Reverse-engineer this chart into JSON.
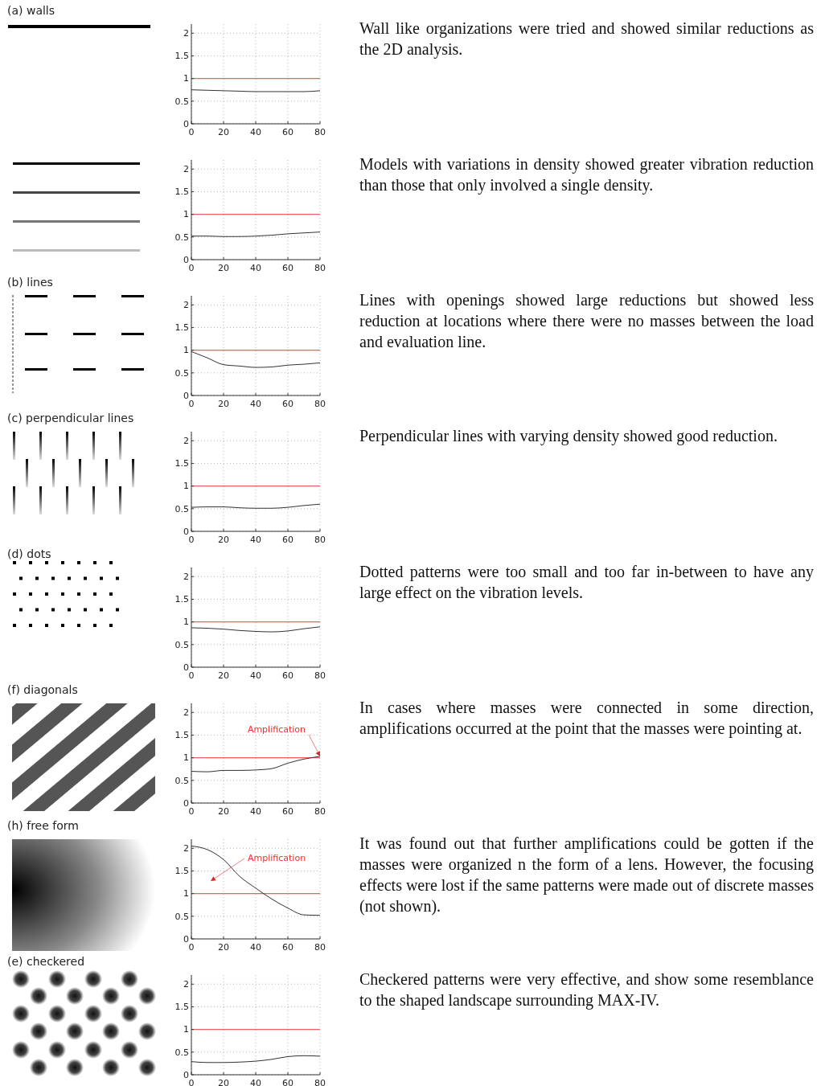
{
  "chart_data": [
    {
      "type": "line",
      "annotations": [
        "(a) walls",
        "Wall like organizations were tried and showed similar reductions as the 2D analysis."
      ],
      "x": [
        0,
        10,
        20,
        30,
        40,
        50,
        60,
        70,
        80
      ],
      "series": [
        {
          "color": "#333333",
          "values": [
            0.75,
            0.74,
            0.73,
            0.72,
            0.71,
            0.71,
            0.71,
            0.71,
            0.73
          ]
        }
      ],
      "xlim": [
        0,
        80
      ],
      "ylim": [
        0,
        2.2
      ],
      "xticks": [
        0,
        20,
        40,
        60,
        80
      ],
      "yticks": [
        0,
        0.5,
        1,
        1.5,
        2
      ],
      "grid": true,
      "ref_lines": [
        {
          "axis": "y",
          "value": 1,
          "color": "#f06060"
        }
      ]
    },
    {
      "type": "line",
      "x": [
        0,
        10,
        20,
        30,
        40,
        50,
        60,
        70,
        80
      ],
      "series": [
        {
          "color": "#333333",
          "values": [
            0.52,
            0.52,
            0.51,
            0.51,
            0.52,
            0.54,
            0.57,
            0.59,
            0.61
          ]
        }
      ],
      "xlim": [
        0,
        80
      ],
      "ylim": [
        0,
        2.2
      ],
      "xticks": [
        0,
        20,
        40,
        60,
        80
      ],
      "yticks": [
        0,
        0.5,
        1,
        1.5,
        2
      ],
      "grid": true,
      "ref_lines": [
        {
          "axis": "y",
          "value": 1,
          "color": "#f06060"
        }
      ],
      "annotations": [
        "Models with variations in density showed greater vibration reduction than those that only involved a single density."
      ]
    },
    {
      "type": "line",
      "x": [
        0,
        10,
        20,
        30,
        40,
        50,
        60,
        70,
        80
      ],
      "series": [
        {
          "color": "#333333",
          "values": [
            0.97,
            0.83,
            0.68,
            0.65,
            0.62,
            0.63,
            0.67,
            0.69,
            0.72
          ]
        }
      ],
      "xlim": [
        0,
        80
      ],
      "ylim": [
        0,
        2.2
      ],
      "xticks": [
        0,
        20,
        40,
        60,
        80
      ],
      "yticks": [
        0,
        0.5,
        1,
        1.5,
        2
      ],
      "grid": true,
      "ref_lines": [
        {
          "axis": "y",
          "value": 1,
          "color": "#f06060"
        }
      ],
      "annotations": [
        "(b) lines",
        "Lines with openings showed large reductions but showed less reduction at locations where there were no masses between the load and evaluation line."
      ]
    },
    {
      "type": "line",
      "x": [
        0,
        10,
        20,
        30,
        40,
        50,
        60,
        70,
        80
      ],
      "series": [
        {
          "color": "#333333",
          "values": [
            0.53,
            0.54,
            0.54,
            0.52,
            0.51,
            0.51,
            0.53,
            0.57,
            0.6
          ]
        }
      ],
      "xlim": [
        0,
        80
      ],
      "ylim": [
        0,
        2.2
      ],
      "xticks": [
        0,
        20,
        40,
        60,
        80
      ],
      "yticks": [
        0,
        0.5,
        1,
        1.5,
        2
      ],
      "grid": true,
      "ref_lines": [
        {
          "axis": "y",
          "value": 1,
          "color": "#f06060"
        }
      ],
      "annotations": [
        "(c) perpendicular lines",
        "Perpendicular lines with varying density showed good reduction."
      ]
    },
    {
      "type": "line",
      "x": [
        0,
        10,
        20,
        30,
        40,
        50,
        60,
        70,
        80
      ],
      "series": [
        {
          "color": "#333333",
          "values": [
            0.87,
            0.86,
            0.84,
            0.81,
            0.79,
            0.78,
            0.8,
            0.85,
            0.89
          ]
        }
      ],
      "xlim": [
        0,
        80
      ],
      "ylim": [
        0,
        2.2
      ],
      "xticks": [
        0,
        20,
        40,
        60,
        80
      ],
      "yticks": [
        0,
        0.5,
        1,
        1.5,
        2
      ],
      "grid": true,
      "ref_lines": [
        {
          "axis": "y",
          "value": 1,
          "color": "#f06060"
        }
      ],
      "annotations": [
        "(d) dots",
        "Dotted patterns were too small and too far in-between to have any large effect on the vibration levels."
      ]
    },
    {
      "type": "line",
      "x": [
        0,
        10,
        20,
        30,
        40,
        50,
        60,
        70,
        80
      ],
      "series": [
        {
          "color": "#333333",
          "values": [
            0.7,
            0.69,
            0.72,
            0.72,
            0.73,
            0.76,
            0.88,
            0.97,
            1.03
          ]
        }
      ],
      "xlim": [
        0,
        80
      ],
      "ylim": [
        0,
        2.2
      ],
      "xticks": [
        0,
        20,
        40,
        60,
        80
      ],
      "yticks": [
        0,
        0.5,
        1,
        1.5,
        2
      ],
      "grid": true,
      "ref_lines": [
        {
          "axis": "y",
          "value": 1,
          "color": "#f06060"
        }
      ],
      "annotations": [
        "(f) diagonals",
        {
          "text": "Amplification",
          "x": 80,
          "y": 1.03
        },
        "In cases where masses were connected in some direction, amplifications occurred at the point that the masses were pointing at."
      ]
    },
    {
      "type": "line",
      "x": [
        0,
        10,
        20,
        30,
        40,
        50,
        60,
        70,
        80
      ],
      "series": [
        {
          "color": "#333333",
          "values": [
            2.05,
            1.97,
            1.75,
            1.38,
            1.12,
            0.88,
            0.68,
            0.53,
            0.52
          ]
        }
      ],
      "xlim": [
        0,
        80
      ],
      "ylim": [
        0,
        2.2
      ],
      "xticks": [
        0,
        20,
        40,
        60,
        80
      ],
      "yticks": [
        0,
        0.5,
        1,
        1.5,
        2
      ],
      "grid": true,
      "ref_lines": [
        {
          "axis": "y",
          "value": 1,
          "color": "#f06060"
        }
      ],
      "annotations": [
        "(h) free form",
        "Amplification",
        "It was found out that further amplifications could be gotten if the masses were organized n the form of a lens. However, the focusing effects were lost if the same patterns were made out of discrete masses (not shown)."
      ]
    },
    {
      "type": "line",
      "x": [
        0,
        10,
        20,
        30,
        40,
        50,
        60,
        70,
        80
      ],
      "series": [
        {
          "color": "#333333",
          "values": [
            0.29,
            0.27,
            0.27,
            0.28,
            0.3,
            0.34,
            0.4,
            0.42,
            0.41
          ]
        }
      ],
      "xlim": [
        0,
        80
      ],
      "ylim": [
        0,
        2.2
      ],
      "xticks": [
        0,
        20,
        40,
        60,
        80
      ],
      "yticks": [
        0,
        0.5,
        1,
        1.5,
        2
      ],
      "grid": true,
      "ref_lines": [
        {
          "axis": "y",
          "value": 1,
          "color": "#f06060"
        }
      ],
      "annotations": [
        "(e) checkered",
        "Checkered patterns were very effective, and show some resemblance to the shaped landscape surrounding MAX-IV."
      ]
    }
  ]
}
